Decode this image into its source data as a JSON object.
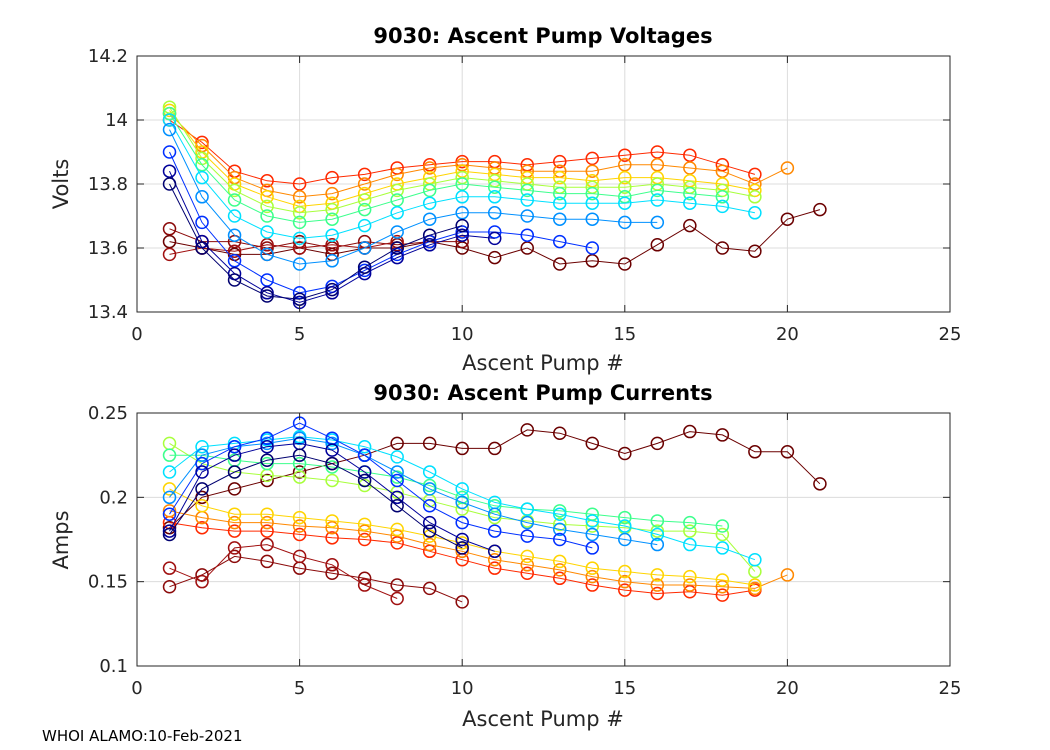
{
  "footer": {
    "text": "WHOI ALAMO:10-Feb-2021"
  },
  "colors": {
    "spaghetti_colormap": "jet",
    "highlight_profile": "#4a0000"
  },
  "chart_data": [
    {
      "type": "line",
      "title": "9030: Ascent Pump Voltages",
      "xlabel": "Ascent Pump #",
      "ylabel": "Volts",
      "xlim": [
        0,
        25
      ],
      "ylim": [
        13.4,
        14.2
      ],
      "xticks": [
        0,
        5,
        10,
        15,
        20,
        25
      ],
      "yticks": [
        13.4,
        13.6,
        13.8,
        14,
        14.2
      ],
      "xtick_labels": [
        "0",
        "5",
        "10",
        "15",
        "20",
        "25"
      ],
      "ytick_labels": [
        "13.4",
        "13.6",
        "13.8",
        "14",
        "14.2"
      ],
      "grid": true,
      "marker": "open-circle",
      "series": [
        {
          "name": "profile-dark-red",
          "color": "#6b0000",
          "x": [
            1,
            2,
            3,
            4,
            5,
            6,
            7,
            8,
            9,
            10,
            11,
            12,
            13,
            14,
            15,
            16,
            17,
            18,
            19,
            20,
            21
          ],
          "y": [
            13.62,
            13.6,
            13.58,
            13.58,
            13.6,
            13.58,
            13.6,
            13.6,
            13.62,
            13.6,
            13.57,
            13.6,
            13.55,
            13.56,
            13.55,
            13.61,
            13.67,
            13.6,
            13.59,
            13.69,
            13.72
          ]
        },
        {
          "name": "profile-brown",
          "color": "#8b0a0a",
          "x": [
            1,
            2,
            3,
            4,
            5,
            6,
            7,
            8,
            9,
            10
          ],
          "y": [
            13.66,
            13.62,
            13.62,
            13.6,
            13.62,
            13.6,
            13.62,
            13.61,
            13.62,
            13.62
          ]
        },
        {
          "name": "profile-maroon",
          "color": "#a01010",
          "x": [
            1,
            2,
            3,
            4,
            5,
            6,
            7,
            8
          ],
          "y": [
            13.58,
            13.6,
            13.59,
            13.61,
            13.6,
            13.61,
            13.6,
            13.62
          ]
        },
        {
          "name": "profile-red",
          "color": "#ff2a00",
          "x": [
            1,
            2,
            3,
            4,
            5,
            6,
            7,
            8,
            9,
            10,
            11,
            12,
            13,
            14,
            15,
            16,
            17,
            18,
            19
          ],
          "y": [
            14.0,
            13.93,
            13.84,
            13.81,
            13.8,
            13.82,
            13.83,
            13.85,
            13.86,
            13.87,
            13.87,
            13.86,
            13.87,
            13.88,
            13.89,
            13.9,
            13.89,
            13.86,
            13.83
          ]
        },
        {
          "name": "profile-orange",
          "color": "#ff8800",
          "x": [
            1,
            2,
            3,
            4,
            5,
            6,
            7,
            8,
            9,
            10,
            11,
            12,
            13,
            14,
            15,
            16,
            17,
            18,
            19,
            20
          ],
          "y": [
            14.02,
            13.92,
            13.82,
            13.78,
            13.76,
            13.77,
            13.8,
            13.83,
            13.85,
            13.86,
            13.85,
            13.84,
            13.84,
            13.84,
            13.86,
            13.86,
            13.85,
            13.84,
            13.8,
            13.85
          ]
        },
        {
          "name": "profile-yellow",
          "color": "#ffd400",
          "x": [
            1,
            2,
            3,
            4,
            5,
            6,
            7,
            8,
            9,
            10,
            11,
            12,
            13,
            14,
            15,
            16,
            17,
            18,
            19
          ],
          "y": [
            14.03,
            13.9,
            13.8,
            13.76,
            13.73,
            13.74,
            13.77,
            13.8,
            13.82,
            13.84,
            13.83,
            13.82,
            13.82,
            13.81,
            13.82,
            13.82,
            13.81,
            13.8,
            13.78
          ]
        },
        {
          "name": "profile-lime",
          "color": "#a8ff3c",
          "x": [
            1,
            2,
            3,
            4,
            5,
            6,
            7,
            8,
            9,
            10,
            11,
            12,
            13,
            14,
            15,
            16,
            17,
            18,
            19
          ],
          "y": [
            14.04,
            13.88,
            13.78,
            13.73,
            13.71,
            13.72,
            13.75,
            13.78,
            13.8,
            13.82,
            13.81,
            13.8,
            13.79,
            13.79,
            13.79,
            13.8,
            13.79,
            13.78,
            13.76
          ]
        },
        {
          "name": "profile-green",
          "color": "#3cff8c",
          "x": [
            1,
            2,
            3,
            4,
            5,
            6,
            7,
            8,
            9,
            10,
            11,
            12,
            13,
            14,
            15,
            16,
            17,
            18
          ],
          "y": [
            14.02,
            13.86,
            13.75,
            13.7,
            13.68,
            13.69,
            13.72,
            13.75,
            13.78,
            13.8,
            13.79,
            13.78,
            13.77,
            13.77,
            13.76,
            13.78,
            13.77,
            13.76
          ]
        },
        {
          "name": "profile-cyan",
          "color": "#00e0ff",
          "x": [
            1,
            2,
            3,
            4,
            5,
            6,
            7,
            8,
            9,
            10,
            11,
            12,
            13,
            14,
            15,
            16,
            17,
            18,
            19
          ],
          "y": [
            14.0,
            13.82,
            13.7,
            13.65,
            13.63,
            13.64,
            13.67,
            13.71,
            13.74,
            13.76,
            13.76,
            13.75,
            13.74,
            13.74,
            13.74,
            13.75,
            13.74,
            13.73,
            13.71
          ]
        },
        {
          "name": "profile-sky",
          "color": "#0090ff",
          "x": [
            1,
            2,
            3,
            4,
            5,
            6,
            7,
            8,
            9,
            10,
            11,
            12,
            13,
            14,
            15,
            16
          ],
          "y": [
            13.97,
            13.76,
            13.64,
            13.58,
            13.55,
            13.56,
            13.6,
            13.65,
            13.69,
            13.71,
            13.71,
            13.7,
            13.69,
            13.69,
            13.68,
            13.68
          ]
        },
        {
          "name": "profile-blue",
          "color": "#0030ff",
          "x": [
            1,
            2,
            3,
            4,
            5,
            6,
            7,
            8,
            9,
            10,
            11,
            12,
            13,
            14
          ],
          "y": [
            13.9,
            13.68,
            13.56,
            13.5,
            13.46,
            13.48,
            13.53,
            13.58,
            13.62,
            13.65,
            13.65,
            13.64,
            13.62,
            13.6
          ]
        },
        {
          "name": "profile-navy",
          "color": "#00009a",
          "x": [
            1,
            2,
            3,
            4,
            5,
            6,
            7,
            8,
            9,
            10,
            11
          ],
          "y": [
            13.84,
            13.62,
            13.52,
            13.46,
            13.43,
            13.46,
            13.52,
            13.57,
            13.61,
            13.64,
            13.63
          ]
        },
        {
          "name": "profile-deep-navy",
          "color": "#000070",
          "x": [
            1,
            2,
            3,
            4,
            5,
            6,
            7,
            8,
            9,
            10
          ],
          "y": [
            13.8,
            13.6,
            13.5,
            13.45,
            13.44,
            13.47,
            13.54,
            13.6,
            13.64,
            13.67
          ]
        }
      ]
    },
    {
      "type": "line",
      "title": "9030: Ascent Pump Currents",
      "xlabel": "Ascent Pump #",
      "ylabel": "Amps",
      "xlim": [
        0,
        25
      ],
      "ylim": [
        0.1,
        0.25
      ],
      "xticks": [
        0,
        5,
        10,
        15,
        20,
        25
      ],
      "yticks": [
        0.1,
        0.15,
        0.2,
        0.25
      ],
      "xtick_labels": [
        "0",
        "5",
        "10",
        "15",
        "20",
        "25"
      ],
      "ytick_labels": [
        "0.1",
        "0.15",
        "0.2",
        "0.25"
      ],
      "grid": true,
      "marker": "open-circle",
      "series": [
        {
          "name": "profile-dark-red",
          "color": "#6b0000",
          "x": [
            1,
            2,
            3,
            4,
            5,
            6,
            7,
            8,
            9,
            10,
            11,
            12,
            13,
            14,
            15,
            16,
            17,
            18,
            19,
            20,
            21
          ],
          "y": [
            0.182,
            0.2,
            0.205,
            0.21,
            0.215,
            0.22,
            0.225,
            0.232,
            0.232,
            0.229,
            0.229,
            0.24,
            0.238,
            0.232,
            0.226,
            0.232,
            0.239,
            0.237,
            0.227,
            0.227,
            0.208
          ]
        },
        {
          "name": "profile-brown",
          "color": "#8b0a0a",
          "x": [
            1,
            2,
            3,
            4,
            5,
            6,
            7,
            8,
            9,
            10
          ],
          "y": [
            0.147,
            0.154,
            0.165,
            0.162,
            0.158,
            0.155,
            0.152,
            0.148,
            0.146,
            0.138
          ]
        },
        {
          "name": "profile-maroon",
          "color": "#a01010",
          "x": [
            1,
            2,
            3,
            4,
            5,
            6,
            7,
            8
          ],
          "y": [
            0.158,
            0.15,
            0.17,
            0.172,
            0.165,
            0.16,
            0.148,
            0.14
          ]
        },
        {
          "name": "profile-red",
          "color": "#ff2a00",
          "x": [
            1,
            2,
            3,
            4,
            5,
            6,
            7,
            8,
            9,
            10,
            11,
            12,
            13,
            14,
            15,
            16,
            17,
            18,
            19
          ],
          "y": [
            0.185,
            0.182,
            0.18,
            0.18,
            0.178,
            0.176,
            0.175,
            0.173,
            0.168,
            0.163,
            0.158,
            0.155,
            0.152,
            0.148,
            0.145,
            0.143,
            0.144,
            0.142,
            0.145
          ]
        },
        {
          "name": "profile-orange",
          "color": "#ff8800",
          "x": [
            1,
            2,
            3,
            4,
            5,
            6,
            7,
            8,
            9,
            10,
            11,
            12,
            13,
            14,
            15,
            16,
            17,
            18,
            19,
            20
          ],
          "y": [
            0.192,
            0.188,
            0.185,
            0.185,
            0.183,
            0.182,
            0.18,
            0.177,
            0.172,
            0.168,
            0.163,
            0.16,
            0.157,
            0.153,
            0.15,
            0.148,
            0.148,
            0.147,
            0.146,
            0.154
          ]
        },
        {
          "name": "profile-yellow",
          "color": "#ffd400",
          "x": [
            1,
            2,
            3,
            4,
            5,
            6,
            7,
            8,
            9,
            10,
            11,
            12,
            13,
            14,
            15,
            16,
            17,
            18,
            19
          ],
          "y": [
            0.205,
            0.195,
            0.19,
            0.19,
            0.188,
            0.186,
            0.184,
            0.181,
            0.177,
            0.173,
            0.168,
            0.165,
            0.162,
            0.158,
            0.156,
            0.154,
            0.153,
            0.151,
            0.148
          ]
        },
        {
          "name": "profile-lime",
          "color": "#a8ff3c",
          "x": [
            1,
            2,
            3,
            4,
            5,
            6,
            7,
            8,
            9,
            10,
            11,
            12,
            13,
            14,
            15,
            16,
            17,
            18,
            19
          ],
          "y": [
            0.232,
            0.22,
            0.215,
            0.213,
            0.212,
            0.21,
            0.207,
            0.203,
            0.198,
            0.193,
            0.188,
            0.186,
            0.184,
            0.183,
            0.182,
            0.18,
            0.18,
            0.178,
            0.156
          ]
        },
        {
          "name": "profile-green",
          "color": "#3cff8c",
          "x": [
            1,
            2,
            3,
            4,
            5,
            6,
            7,
            8,
            9,
            10,
            11,
            12,
            13,
            14,
            15,
            16,
            17,
            18
          ],
          "y": [
            0.225,
            0.225,
            0.222,
            0.22,
            0.22,
            0.218,
            0.215,
            0.212,
            0.207,
            0.2,
            0.195,
            0.193,
            0.192,
            0.19,
            0.188,
            0.186,
            0.185,
            0.183
          ]
        },
        {
          "name": "profile-cyan",
          "color": "#00e0ff",
          "x": [
            1,
            2,
            3,
            4,
            5,
            6,
            7,
            8,
            9,
            10,
            11,
            12,
            13,
            14,
            15,
            16,
            17,
            18,
            19
          ],
          "y": [
            0.215,
            0.23,
            0.232,
            0.234,
            0.236,
            0.234,
            0.23,
            0.224,
            0.215,
            0.205,
            0.197,
            0.193,
            0.19,
            0.186,
            0.183,
            0.178,
            0.172,
            0.17,
            0.163
          ]
        },
        {
          "name": "profile-sky",
          "color": "#0090ff",
          "x": [
            1,
            2,
            3,
            4,
            5,
            6,
            7,
            8,
            9,
            10,
            11,
            12,
            13,
            14,
            15,
            16
          ],
          "y": [
            0.2,
            0.225,
            0.23,
            0.232,
            0.235,
            0.232,
            0.225,
            0.215,
            0.205,
            0.197,
            0.19,
            0.185,
            0.181,
            0.178,
            0.175,
            0.172
          ]
        },
        {
          "name": "profile-blue",
          "color": "#0030ff",
          "x": [
            1,
            2,
            3,
            4,
            5,
            6,
            7,
            8,
            9,
            10,
            11,
            12,
            13,
            14
          ],
          "y": [
            0.19,
            0.22,
            0.23,
            0.235,
            0.244,
            0.235,
            0.225,
            0.21,
            0.195,
            0.185,
            0.18,
            0.177,
            0.175,
            0.17
          ]
        },
        {
          "name": "profile-navy",
          "color": "#00009a",
          "x": [
            1,
            2,
            3,
            4,
            5,
            6,
            7,
            8,
            9,
            10,
            11
          ],
          "y": [
            0.18,
            0.215,
            0.225,
            0.23,
            0.232,
            0.228,
            0.215,
            0.2,
            0.185,
            0.175,
            0.168
          ]
        },
        {
          "name": "profile-deep-navy",
          "color": "#000070",
          "x": [
            1,
            2,
            3,
            4,
            5,
            6,
            7,
            8,
            9,
            10
          ],
          "y": [
            0.178,
            0.205,
            0.215,
            0.222,
            0.225,
            0.22,
            0.21,
            0.195,
            0.18,
            0.17
          ]
        }
      ]
    }
  ]
}
